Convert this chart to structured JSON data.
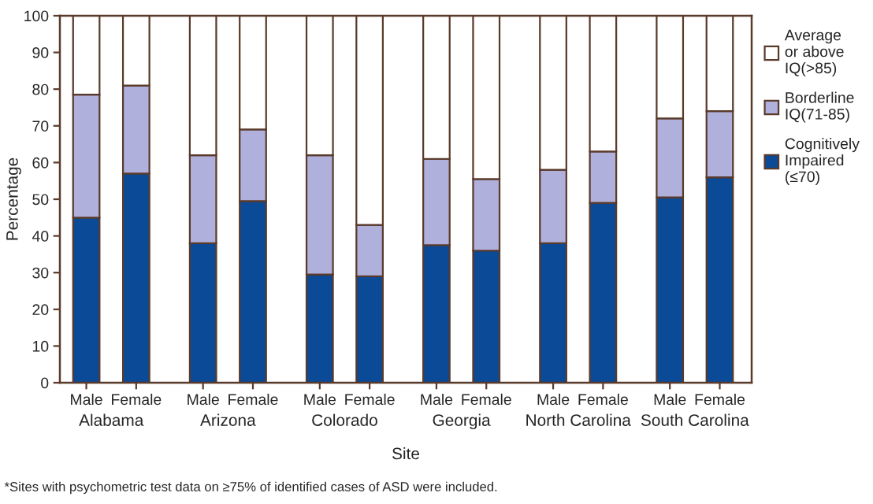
{
  "chart_data": {
    "type": "bar",
    "stacked": true,
    "categories": [
      "Male",
      "Female",
      "Male",
      "Female",
      "Male",
      "Female",
      "Male",
      "Female",
      "Male",
      "Female",
      "Male",
      "Female"
    ],
    "series": [
      {
        "name": "Cognitively\nImpaired\n(≤70)",
        "color": "#0b4a96",
        "values": [
          45,
          57,
          38,
          49.5,
          29.5,
          29,
          37.5,
          36,
          38,
          49,
          50.5,
          56
        ]
      },
      {
        "name": "Borderline\nIQ(71-85)",
        "color": "#b0b0dc",
        "values": [
          33.5,
          24,
          24,
          19.5,
          32.5,
          14,
          23.5,
          19.5,
          20,
          14,
          21.5,
          18
        ]
      },
      {
        "name": "Average\nor above\nIQ(>85)",
        "color": "#ffffff",
        "values": [
          21.5,
          19,
          38,
          31,
          38,
          57,
          39,
          44.5,
          42,
          37,
          28,
          26
        ]
      }
    ],
    "xlabel": "Site",
    "ylabel": "Percentage",
    "ylim": [
      0,
      100
    ],
    "yticks": [
      0,
      10,
      20,
      30,
      40,
      50,
      60,
      70,
      80,
      90,
      100
    ],
    "legend": "right",
    "grid": false,
    "annotations": [
      "Alabama",
      "Arizona",
      "Colorado",
      "Georgia",
      "North Carolina",
      "South Carolina",
      "*Sites with psychometric test data on ≥75% of identified cases of ASD were included."
    ]
  }
}
